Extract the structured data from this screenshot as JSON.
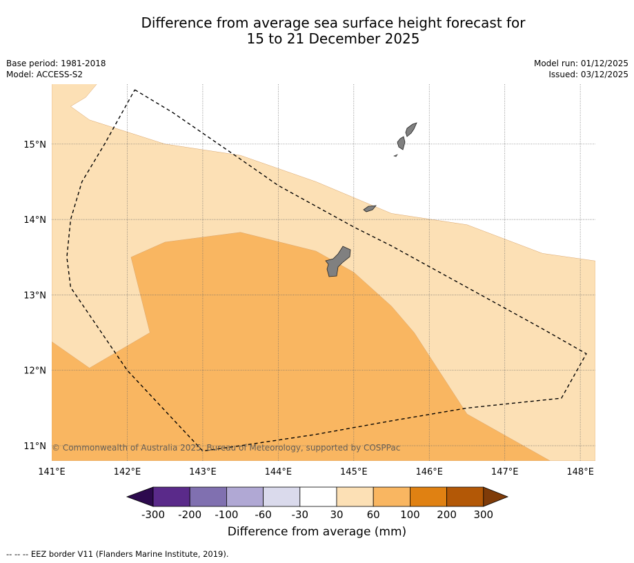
{
  "title": {
    "line1": "Difference from average sea surface height forecast for",
    "line2": "15 to 21 December 2025"
  },
  "meta": {
    "base_period": "Base period: 1981-2018",
    "model": "Model: ACCESS-S2",
    "model_run": "Model run: 01/12/2025",
    "issued": "Issued: 03/12/2025"
  },
  "axes": {
    "lon_min": 141.0,
    "lon_max": 148.2,
    "lat_min": 10.8,
    "lat_max": 15.8,
    "lon_ticks": [
      141,
      142,
      143,
      144,
      145,
      146,
      147,
      148
    ],
    "lon_labels": [
      "141°E",
      "142°E",
      "143°E",
      "144°E",
      "145°E",
      "146°E",
      "147°E",
      "148°E"
    ],
    "lat_ticks": [
      11,
      12,
      13,
      14,
      15
    ],
    "lat_labels": [
      "11°N",
      "12°N",
      "13°N",
      "14°N",
      "15°N"
    ]
  },
  "copyright": "© Commonwealth of Australia 2025, Bureau of Meteorology, supported by COSPPac",
  "colorbar": {
    "label": "Difference from average (mm)",
    "bins": [
      {
        "color": "#2d0a4e"
      },
      {
        "color": "#5a2a8a"
      },
      {
        "color": "#8070b0"
      },
      {
        "color": "#b0a8d4"
      },
      {
        "color": "#dadaec"
      },
      {
        "color": "#ffffff"
      },
      {
        "color": "#fce0b5"
      },
      {
        "color": "#f9b661"
      },
      {
        "color": "#e08112"
      },
      {
        "color": "#b35806"
      },
      {
        "color": "#7f3b08"
      }
    ],
    "tick_labels": [
      "-300",
      "-200",
      "-100",
      "-60",
      "-30",
      "30",
      "60",
      "100",
      "200",
      "300"
    ]
  },
  "footer": "--  --  -- EEZ border V11 (Flanders Marine Institute, 2019).",
  "colors": {
    "light_orange": "#fce0b5",
    "orange": "#f9b661",
    "land": "#808080",
    "eez": "#000000"
  },
  "chart_data": {
    "type": "map",
    "title": "Difference from average sea surface height forecast for 15 to 21 December 2025",
    "units": "mm",
    "regions": [
      {
        "name": "30 to 60 mm",
        "color": "#fce0b5",
        "polygon": [
          [
            141.0,
            15.8
          ],
          [
            141.6,
            15.8
          ],
          [
            141.45,
            15.62
          ],
          [
            141.25,
            15.5
          ],
          [
            141.5,
            15.32
          ],
          [
            142.5,
            15.0
          ],
          [
            143.5,
            14.85
          ],
          [
            144.5,
            14.5
          ],
          [
            145.5,
            14.08
          ],
          [
            146.5,
            13.93
          ],
          [
            147.5,
            13.55
          ],
          [
            148.2,
            13.45
          ],
          [
            148.2,
            10.8
          ],
          [
            141.0,
            10.8
          ]
        ]
      },
      {
        "name": "60 to 100 mm",
        "color": "#f9b661",
        "polygon": [
          [
            141.0,
            12.38
          ],
          [
            141.5,
            12.03
          ],
          [
            142.3,
            12.5
          ],
          [
            142.05,
            13.5
          ],
          [
            142.5,
            13.7
          ],
          [
            143.5,
            13.83
          ],
          [
            144.5,
            13.58
          ],
          [
            145.0,
            13.3
          ],
          [
            145.5,
            12.85
          ],
          [
            145.8,
            12.5
          ],
          [
            146.5,
            11.42
          ],
          [
            147.6,
            10.8
          ],
          [
            141.0,
            10.8
          ]
        ]
      }
    ],
    "islands": [
      "Guam",
      "Rota",
      "Tinian",
      "Saipan"
    ],
    "eez_border": [
      [
        142.1,
        15.72
      ],
      [
        142.6,
        15.42
      ],
      [
        143.5,
        14.8
      ],
      [
        144.0,
        14.45
      ],
      [
        145.0,
        13.9
      ],
      [
        145.5,
        13.65
      ],
      [
        146.5,
        13.1
      ],
      [
        147.5,
        12.55
      ],
      [
        148.08,
        12.22
      ],
      [
        147.75,
        11.63
      ],
      [
        146.5,
        11.5
      ],
      [
        145.5,
        11.33
      ],
      [
        144.5,
        11.15
      ],
      [
        143.5,
        11.0
      ],
      [
        143.0,
        10.93
      ],
      [
        142.0,
        12.0
      ],
      [
        141.25,
        13.1
      ],
      [
        141.2,
        13.5
      ],
      [
        141.25,
        14.0
      ],
      [
        141.4,
        14.5
      ],
      [
        141.7,
        15.0
      ],
      [
        142.1,
        15.72
      ]
    ]
  }
}
